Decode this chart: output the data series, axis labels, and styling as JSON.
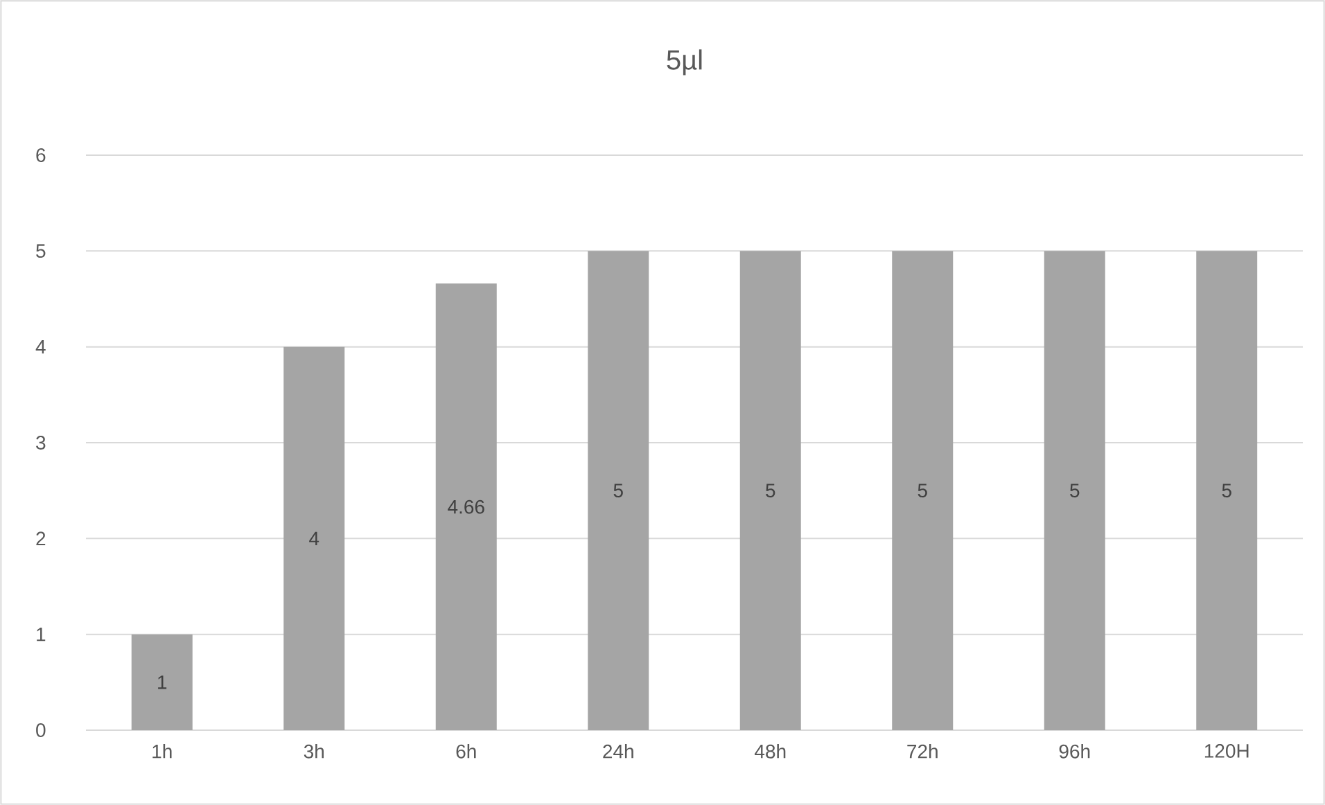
{
  "chart_data": {
    "type": "bar",
    "title": "5µl",
    "categories": [
      "1h",
      "3h",
      "6h",
      "24h",
      "48h",
      "72h",
      "96h",
      "120H"
    ],
    "values": [
      1,
      4,
      4.66,
      5,
      5,
      5,
      5,
      5
    ],
    "color": "#a5a5a5",
    "ylim": [
      0,
      6
    ],
    "yticks": [
      0,
      1,
      2,
      3,
      4,
      5,
      6
    ],
    "grid": "y",
    "data_labels": true
  }
}
